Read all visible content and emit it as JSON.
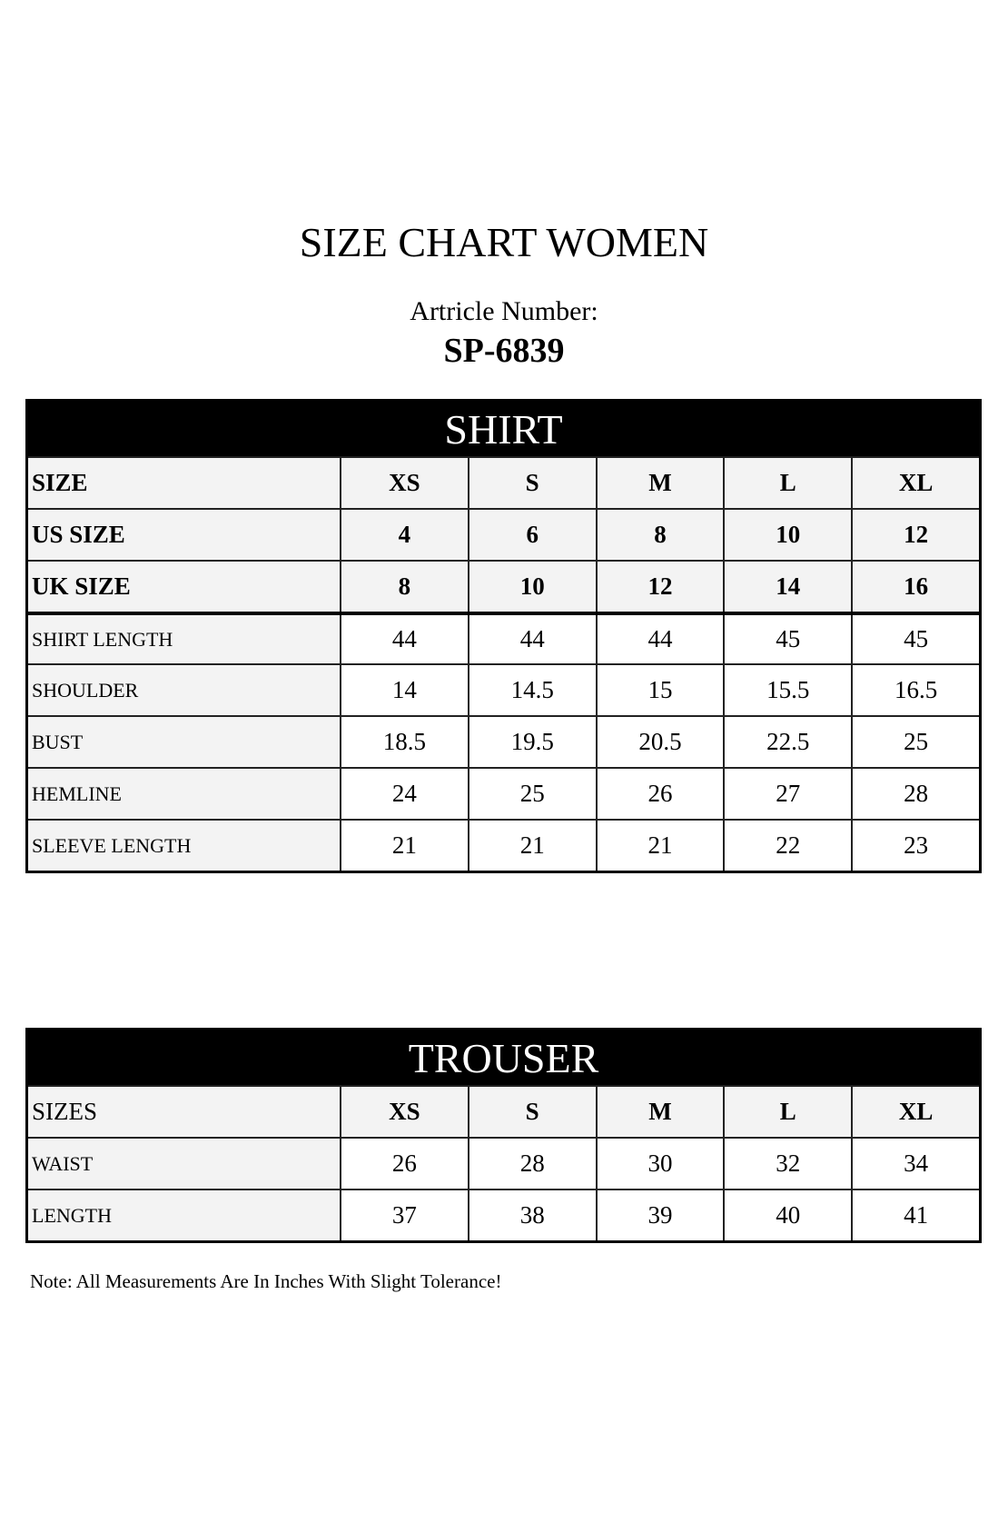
{
  "title": "SIZE CHART WOMEN",
  "article_label": "Artricle Number:",
  "article_number": "SP-6839",
  "shirt": {
    "heading": "SHIRT",
    "header_rows": [
      {
        "label": "SIZE",
        "values": [
          "XS",
          "S",
          "M",
          "L",
          "XL"
        ]
      },
      {
        "label": "US SIZE",
        "values": [
          "4",
          "6",
          "8",
          "10",
          "12"
        ]
      },
      {
        "label": "UK SIZE",
        "values": [
          "8",
          "10",
          "12",
          "14",
          "16"
        ]
      }
    ],
    "rows": [
      {
        "label": "SHIRT LENGTH",
        "values": [
          "44",
          "44",
          "44",
          "45",
          "45"
        ]
      },
      {
        "label": "SHOULDER",
        "values": [
          "14",
          "14.5",
          "15",
          "15.5",
          "16.5"
        ]
      },
      {
        "label": "BUST",
        "values": [
          "18.5",
          "19.5",
          "20.5",
          "22.5",
          "25"
        ]
      },
      {
        "label": "HEMLINE",
        "values": [
          "24",
          "25",
          "26",
          "27",
          "28"
        ]
      },
      {
        "label": "SLEEVE LENGTH",
        "values": [
          "21",
          "21",
          "21",
          "22",
          "23"
        ]
      }
    ]
  },
  "trouser": {
    "heading": "TROUSER",
    "header_rows": [
      {
        "label": "SIZES",
        "values": [
          "XS",
          "S",
          "M",
          "L",
          "XL"
        ]
      }
    ],
    "rows": [
      {
        "label": "WAIST",
        "values": [
          "26",
          "28",
          "30",
          "32",
          "34"
        ]
      },
      {
        "label": "LENGTH",
        "values": [
          "37",
          "38",
          "39",
          "40",
          "41"
        ]
      }
    ]
  },
  "note": "Note: All Measurements Are In Inches With Slight Tolerance!"
}
